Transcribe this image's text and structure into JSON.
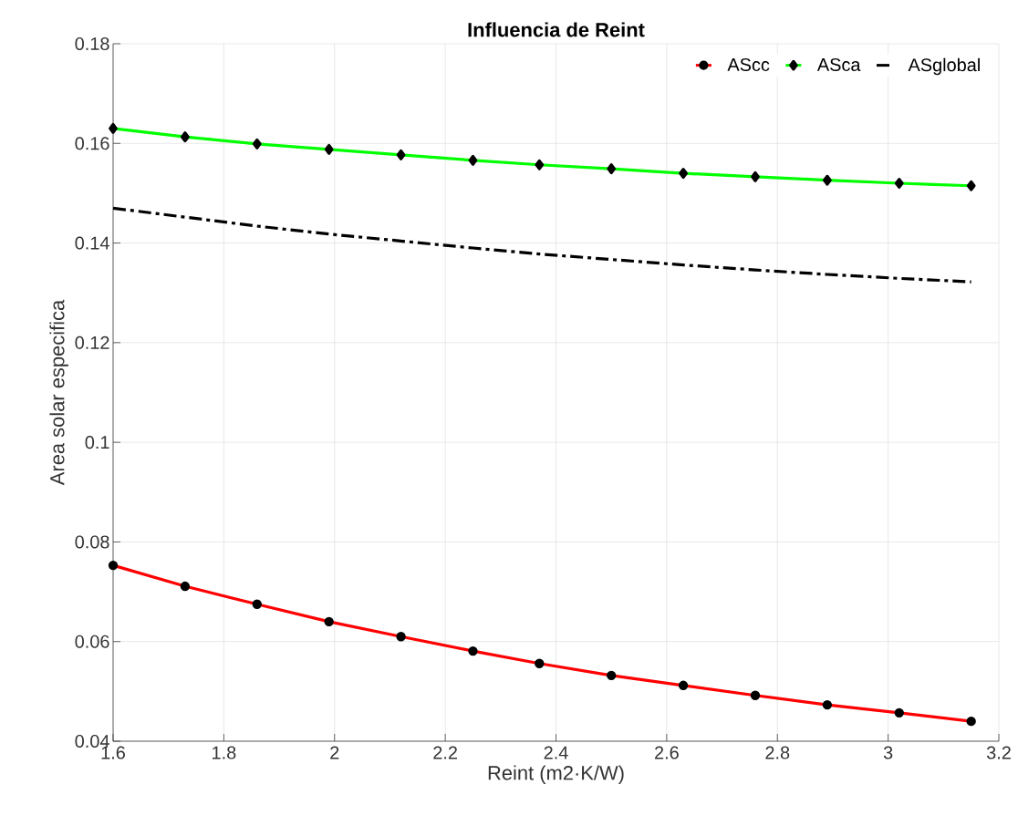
{
  "chart_data": {
    "type": "line",
    "title": "Influencia de Reint",
    "xlabel": "Reint (m2·K/W)",
    "ylabel": "Area solar especifica",
    "x": [
      1.6,
      1.73,
      1.86,
      1.99,
      2.12,
      2.25,
      2.37,
      2.5,
      2.63,
      2.76,
      2.89,
      3.02,
      3.15
    ],
    "series": [
      {
        "name": "AScc",
        "color": "#ff0000",
        "marker": "circle",
        "line_style": "solid",
        "values": [
          0.0753,
          0.0711,
          0.0675,
          0.064,
          0.061,
          0.0581,
          0.0556,
          0.0532,
          0.0512,
          0.0492,
          0.0473,
          0.0457,
          0.044
        ]
      },
      {
        "name": "ASca",
        "color": "#00ff00",
        "marker": "diamond",
        "line_style": "solid",
        "values": [
          0.163,
          0.1613,
          0.1599,
          0.1588,
          0.1577,
          0.1566,
          0.1557,
          0.1549,
          0.154,
          0.1533,
          0.1526,
          0.152,
          0.1515
        ]
      },
      {
        "name": "ASglobal",
        "color": "#000000",
        "marker": "none",
        "line_style": "dashdot",
        "values": [
          0.147,
          0.1452,
          0.1434,
          0.1418,
          0.1404,
          0.139,
          0.1378,
          0.1367,
          0.1356,
          0.1346,
          0.1337,
          0.1329,
          0.1322
        ]
      }
    ],
    "xlim": [
      1.6,
      3.2
    ],
    "ylim": [
      0.04,
      0.18
    ],
    "xticks": [
      1.6,
      1.8,
      2,
      2.2,
      2.4,
      2.6,
      2.8,
      3,
      3.2
    ],
    "yticks": [
      0.04,
      0.06,
      0.08,
      0.1,
      0.12,
      0.14,
      0.16,
      0.18
    ],
    "grid": true,
    "legend": "top right"
  }
}
